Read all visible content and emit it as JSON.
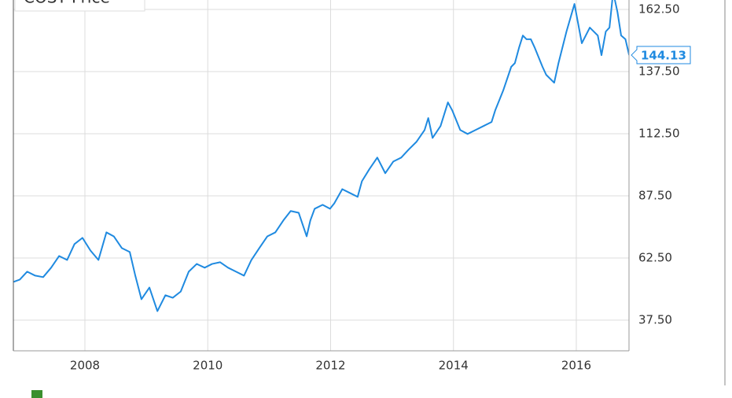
{
  "chart_data": {
    "type": "line",
    "title": "COST Price",
    "x": [
      2006.84,
      2006.94,
      2007.06,
      2007.19,
      2007.32,
      2007.45,
      2007.58,
      2007.71,
      2007.83,
      2007.96,
      2008.09,
      2008.22,
      2008.35,
      2008.47,
      2008.6,
      2008.73,
      2008.82,
      2008.92,
      2009.05,
      2009.18,
      2009.31,
      2009.43,
      2009.56,
      2009.69,
      2009.82,
      2009.95,
      2010.07,
      2010.2,
      2010.33,
      2010.46,
      2010.59,
      2010.71,
      2010.84,
      2010.97,
      2011.1,
      2011.23,
      2011.35,
      2011.48,
      2011.61,
      2011.67,
      2011.74,
      2011.87,
      2011.99,
      2012.06,
      2012.19,
      2012.31,
      2012.44,
      2012.51,
      2012.63,
      2012.76,
      2012.89,
      2013.02,
      2013.15,
      2013.27,
      2013.4,
      2013.53,
      2013.59,
      2013.66,
      2013.79,
      2013.91,
      2013.98,
      2014.11,
      2014.23,
      2014.36,
      2014.49,
      2014.62,
      2014.68,
      2014.81,
      2014.94,
      2015.0,
      2015.07,
      2015.13,
      2015.19,
      2015.26,
      2015.32,
      2015.45,
      2015.51,
      2015.64,
      2015.71,
      2015.84,
      2015.97,
      2016.09,
      2016.22,
      2016.35,
      2016.41,
      2016.48,
      2016.54,
      2016.6,
      2016.67,
      2016.73,
      2016.8,
      2016.86
    ],
    "series": [
      {
        "name": "COST Price",
        "color": "#1f8ae0",
        "values": [
          52.9,
          53.8,
          57.0,
          55.4,
          54.8,
          58.6,
          63.3,
          61.7,
          68.1,
          70.6,
          65.5,
          61.7,
          72.8,
          71.2,
          66.5,
          64.9,
          55.4,
          45.9,
          50.6,
          41.1,
          47.5,
          46.5,
          49.0,
          57.0,
          60.1,
          58.6,
          60.1,
          60.8,
          58.6,
          57.0,
          55.4,
          61.7,
          66.5,
          71.2,
          72.8,
          77.6,
          81.4,
          80.7,
          71.2,
          77.6,
          82.3,
          83.9,
          82.3,
          84.5,
          90.2,
          88.7,
          87.1,
          93.4,
          98.2,
          102.9,
          96.6,
          101.3,
          102.9,
          106.1,
          109.3,
          114.0,
          118.8,
          110.8,
          115.6,
          125.1,
          121.9,
          114.0,
          112.4,
          114.0,
          115.6,
          117.2,
          121.9,
          129.9,
          139.4,
          140.9,
          147.3,
          152.0,
          150.5,
          150.5,
          147.3,
          139.4,
          136.2,
          133.0,
          140.9,
          153.6,
          164.7,
          148.9,
          155.2,
          152.0,
          144.1,
          153.6,
          155.2,
          169.5,
          161.5,
          152.0,
          150.5,
          144.13
        ]
      }
    ],
    "xlim": [
      2006.835,
      2016.858
    ],
    "xticks": [
      2008,
      2010,
      2012,
      2014,
      2016
    ],
    "ylim": [
      25.15,
      166.3
    ],
    "yticks": [
      {
        "value": 37.5,
        "label": "37.50"
      },
      {
        "value": 62.5,
        "label": "62.50"
      },
      {
        "value": 87.5,
        "label": "87.50"
      },
      {
        "value": 112.5,
        "label": "112.50"
      },
      {
        "value": 137.5,
        "label": "137.50"
      },
      {
        "value": 162.5,
        "label": "162.50"
      }
    ],
    "grid": true
  }
}
